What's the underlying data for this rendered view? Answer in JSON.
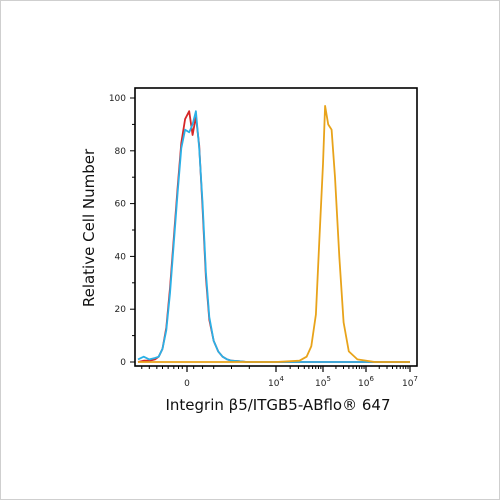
{
  "chart_data": {
    "type": "line",
    "title": "",
    "xlabel": "Integrin β5/ITGB5-ABflo® 647",
    "ylabel": "Relative Cell Number",
    "y_ticks": [
      "0",
      "20",
      "40",
      "60",
      "80",
      "100"
    ],
    "x_ticks": [
      {
        "base": "0",
        "exp": ""
      },
      {
        "base": "10",
        "exp": "4"
      },
      {
        "base": "10",
        "exp": "5"
      },
      {
        "base": "10",
        "exp": "6"
      },
      {
        "base": "10",
        "exp": "7"
      }
    ],
    "x_scale": "biexponential",
    "ylim": [
      0,
      100
    ],
    "grid": false,
    "series": [
      {
        "color": "#d62728",
        "x": [
          -2.6,
          -2.3,
          -2.0,
          -1.7,
          -1.5,
          -1.3,
          -1.1,
          -0.9,
          -0.7,
          -0.5,
          -0.3,
          -0.1,
          0.1,
          0.25,
          0.4,
          0.55,
          0.7,
          0.85,
          1.0,
          1.2,
          1.4,
          1.6,
          1.8,
          2.0,
          2.3,
          2.7,
          3.2,
          4.0,
          6.0,
          7.0
        ],
        "y": [
          0,
          0.5,
          0.5,
          1,
          2,
          5,
          13,
          28,
          47,
          66,
          83,
          92,
          95,
          86,
          93,
          82,
          58,
          32,
          16,
          8,
          4,
          2,
          1,
          0.5,
          0.3,
          0,
          0,
          0,
          0,
          0
        ]
      },
      {
        "color": "#2bb0e6",
        "x": [
          -2.6,
          -2.3,
          -2.0,
          -1.7,
          -1.5,
          -1.3,
          -1.1,
          -0.9,
          -0.7,
          -0.5,
          -0.3,
          -0.1,
          0.1,
          0.25,
          0.4,
          0.55,
          0.7,
          0.85,
          1.0,
          1.2,
          1.4,
          1.6,
          1.8,
          2.0,
          2.3,
          2.7,
          3.2,
          4.0,
          6.0,
          7.0
        ],
        "y": [
          1,
          2,
          1,
          1.5,
          2,
          5,
          12,
          26,
          45,
          64,
          81,
          88,
          87,
          90,
          95,
          81,
          60,
          34,
          17,
          8,
          4,
          2,
          1,
          0.5,
          0.3,
          0,
          0,
          0,
          0,
          0
        ]
      },
      {
        "color": "#e8a31a",
        "x": [
          -2.6,
          0,
          2.0,
          4.0,
          4.5,
          4.65,
          4.75,
          4.85,
          4.92,
          5.0,
          5.05,
          5.12,
          5.2,
          5.28,
          5.38,
          5.48,
          5.6,
          5.8,
          6.2,
          7.0
        ],
        "y": [
          0,
          0,
          0,
          0,
          0.5,
          2,
          6,
          18,
          45,
          75,
          97,
          90,
          88,
          70,
          40,
          15,
          4,
          1,
          0,
          0
        ]
      }
    ]
  }
}
